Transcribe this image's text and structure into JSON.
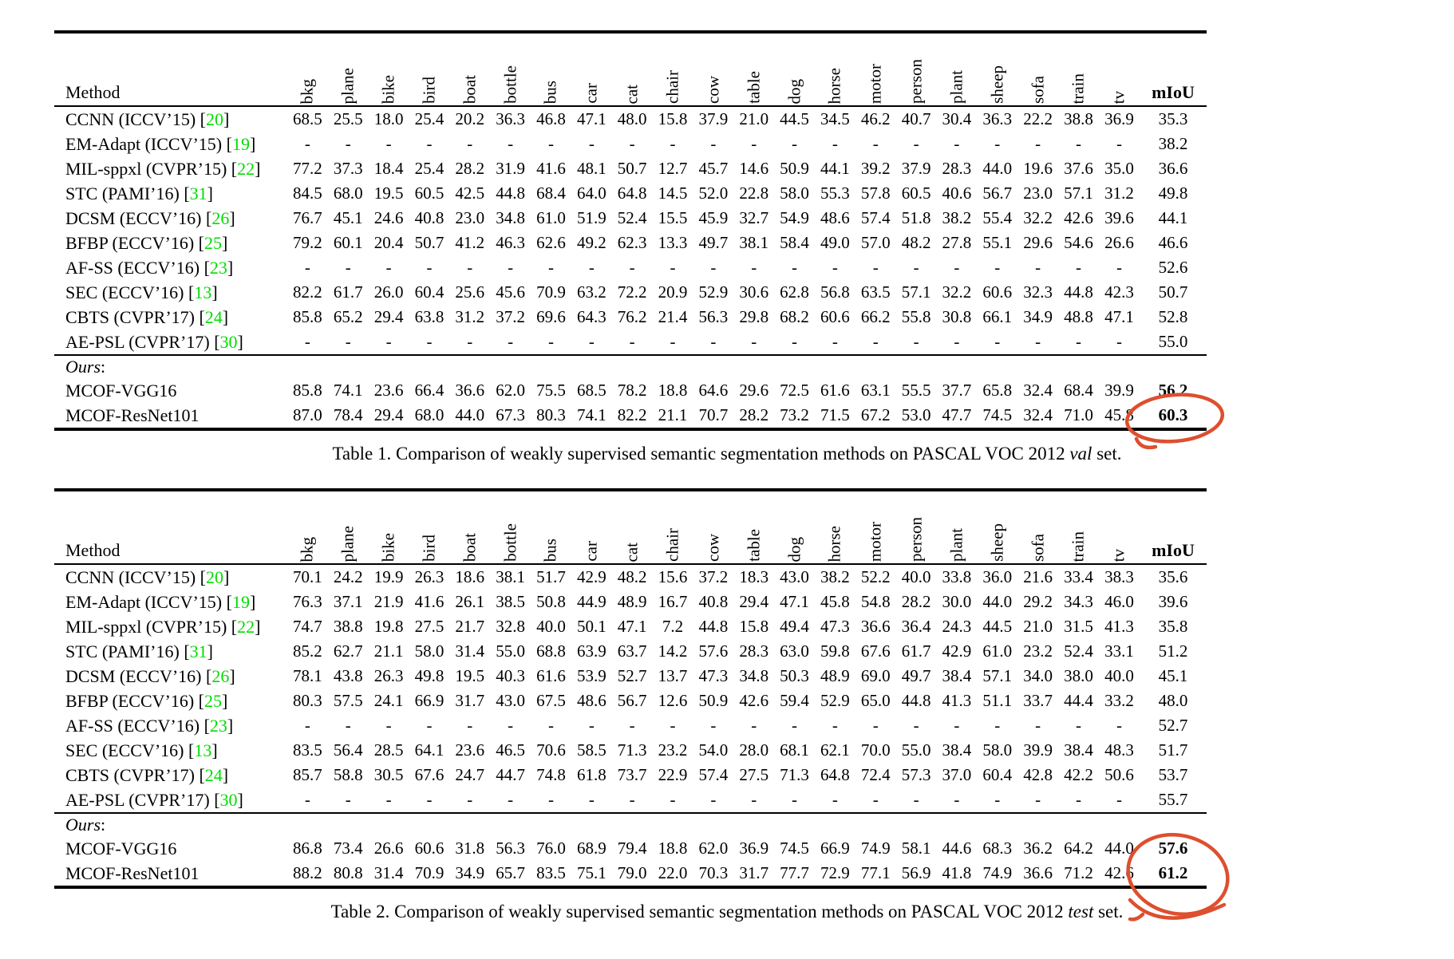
{
  "colors": {
    "reference_green": "#00dd00",
    "annotation_red": "#dd4f2e"
  },
  "header": {
    "method": "Method",
    "miou": "mIoU"
  },
  "class_columns": [
    "bkg",
    "plane",
    "bike",
    "bird",
    "boat",
    "bottle",
    "bus",
    "car",
    "cat",
    "chair",
    "cow",
    "table",
    "dog",
    "horse",
    "motor",
    "person",
    "plant",
    "sheep",
    "sofa",
    "train",
    "tv"
  ],
  "ours_label": "Ours",
  "tables": [
    {
      "caption": {
        "prefix": "Table 1. Comparison of weakly supervised semantic segmentation methods on PASCAL VOC 2012 ",
        "emphasis": "val",
        "suffix": " set."
      },
      "rows": [
        {
          "method": "CCNN (ICCV’15)",
          "ref": "20",
          "values": [
            "68.5",
            "25.5",
            "18.0",
            "25.4",
            "20.2",
            "36.3",
            "46.8",
            "47.1",
            "48.0",
            "15.8",
            "37.9",
            "21.0",
            "44.5",
            "34.5",
            "46.2",
            "40.7",
            "30.4",
            "36.3",
            "22.2",
            "38.8",
            "36.9"
          ],
          "miou": "35.3"
        },
        {
          "method": "EM-Adapt (ICCV’15)",
          "ref": "19",
          "values": [
            "-",
            "-",
            "-",
            "-",
            "-",
            "-",
            "-",
            "-",
            "-",
            "-",
            "-",
            "-",
            "-",
            "-",
            "-",
            "-",
            "-",
            "-",
            "-",
            "-",
            "-"
          ],
          "miou": "38.2"
        },
        {
          "method": "MIL-sppxl (CVPR’15)",
          "ref": "22",
          "values": [
            "77.2",
            "37.3",
            "18.4",
            "25.4",
            "28.2",
            "31.9",
            "41.6",
            "48.1",
            "50.7",
            "12.7",
            "45.7",
            "14.6",
            "50.9",
            "44.1",
            "39.2",
            "37.9",
            "28.3",
            "44.0",
            "19.6",
            "37.6",
            "35.0"
          ],
          "miou": "36.6"
        },
        {
          "method": "STC (PAMI’16)",
          "ref": "31",
          "values": [
            "84.5",
            "68.0",
            "19.5",
            "60.5",
            "42.5",
            "44.8",
            "68.4",
            "64.0",
            "64.8",
            "14.5",
            "52.0",
            "22.8",
            "58.0",
            "55.3",
            "57.8",
            "60.5",
            "40.6",
            "56.7",
            "23.0",
            "57.1",
            "31.2"
          ],
          "miou": "49.8"
        },
        {
          "method": "DCSM (ECCV’16)",
          "ref": "26",
          "values": [
            "76.7",
            "45.1",
            "24.6",
            "40.8",
            "23.0",
            "34.8",
            "61.0",
            "51.9",
            "52.4",
            "15.5",
            "45.9",
            "32.7",
            "54.9",
            "48.6",
            "57.4",
            "51.8",
            "38.2",
            "55.4",
            "32.2",
            "42.6",
            "39.6"
          ],
          "miou": "44.1"
        },
        {
          "method": "BFBP (ECCV’16)",
          "ref": "25",
          "values": [
            "79.2",
            "60.1",
            "20.4",
            "50.7",
            "41.2",
            "46.3",
            "62.6",
            "49.2",
            "62.3",
            "13.3",
            "49.7",
            "38.1",
            "58.4",
            "49.0",
            "57.0",
            "48.2",
            "27.8",
            "55.1",
            "29.6",
            "54.6",
            "26.6"
          ],
          "miou": "46.6"
        },
        {
          "method": "AF-SS (ECCV’16)",
          "ref": "23",
          "values": [
            "-",
            "-",
            "-",
            "-",
            "-",
            "-",
            "-",
            "-",
            "-",
            "-",
            "-",
            "-",
            "-",
            "-",
            "-",
            "-",
            "-",
            "-",
            "-",
            "-",
            "-"
          ],
          "miou": "52.6"
        },
        {
          "method": "SEC (ECCV’16)",
          "ref": "13",
          "values": [
            "82.2",
            "61.7",
            "26.0",
            "60.4",
            "25.6",
            "45.6",
            "70.9",
            "63.2",
            "72.2",
            "20.9",
            "52.9",
            "30.6",
            "62.8",
            "56.8",
            "63.5",
            "57.1",
            "32.2",
            "60.6",
            "32.3",
            "44.8",
            "42.3"
          ],
          "miou": "50.7"
        },
        {
          "method": "CBTS (CVPR’17)",
          "ref": "24",
          "values": [
            "85.8",
            "65.2",
            "29.4",
            "63.8",
            "31.2",
            "37.2",
            "69.6",
            "64.3",
            "76.2",
            "21.4",
            "56.3",
            "29.8",
            "68.2",
            "60.6",
            "66.2",
            "55.8",
            "30.8",
            "66.1",
            "34.9",
            "48.8",
            "47.1"
          ],
          "miou": "52.8"
        },
        {
          "method": "AE-PSL (CVPR’17)",
          "ref": "30",
          "values": [
            "-",
            "-",
            "-",
            "-",
            "-",
            "-",
            "-",
            "-",
            "-",
            "-",
            "-",
            "-",
            "-",
            "-",
            "-",
            "-",
            "-",
            "-",
            "-",
            "-",
            "-"
          ],
          "miou": "55.0"
        }
      ],
      "ours_rows": [
        {
          "method": "MCOF-VGG16",
          "ref": "",
          "values": [
            "85.8",
            "74.1",
            "23.6",
            "66.4",
            "36.6",
            "62.0",
            "75.5",
            "68.5",
            "78.2",
            "18.8",
            "64.6",
            "29.6",
            "72.5",
            "61.6",
            "63.1",
            "55.5",
            "37.7",
            "65.8",
            "32.4",
            "68.4",
            "39.9"
          ],
          "miou": "56.2"
        },
        {
          "method": "MCOF-ResNet101",
          "ref": "",
          "values": [
            "87.0",
            "78.4",
            "29.4",
            "68.0",
            "44.0",
            "67.3",
            "80.3",
            "74.1",
            "82.2",
            "21.1",
            "70.7",
            "28.2",
            "73.2",
            "71.5",
            "67.2",
            "53.0",
            "47.7",
            "74.5",
            "32.4",
            "71.0",
            "45.8"
          ],
          "miou": "60.3"
        }
      ]
    },
    {
      "caption": {
        "prefix": "Table 2. Comparison of weakly supervised semantic segmentation methods on PASCAL VOC 2012 ",
        "emphasis": "test",
        "suffix": " set."
      },
      "rows": [
        {
          "method": "CCNN (ICCV’15)",
          "ref": "20",
          "values": [
            "70.1",
            "24.2",
            "19.9",
            "26.3",
            "18.6",
            "38.1",
            "51.7",
            "42.9",
            "48.2",
            "15.6",
            "37.2",
            "18.3",
            "43.0",
            "38.2",
            "52.2",
            "40.0",
            "33.8",
            "36.0",
            "21.6",
            "33.4",
            "38.3"
          ],
          "miou": "35.6"
        },
        {
          "method": "EM-Adapt (ICCV’15)",
          "ref": "19",
          "values": [
            "76.3",
            "37.1",
            "21.9",
            "41.6",
            "26.1",
            "38.5",
            "50.8",
            "44.9",
            "48.9",
            "16.7",
            "40.8",
            "29.4",
            "47.1",
            "45.8",
            "54.8",
            "28.2",
            "30.0",
            "44.0",
            "29.2",
            "34.3",
            "46.0"
          ],
          "miou": "39.6"
        },
        {
          "method": "MIL-sppxl (CVPR’15)",
          "ref": "22",
          "values": [
            "74.7",
            "38.8",
            "19.8",
            "27.5",
            "21.7",
            "32.8",
            "40.0",
            "50.1",
            "47.1",
            "7.2",
            "44.8",
            "15.8",
            "49.4",
            "47.3",
            "36.6",
            "36.4",
            "24.3",
            "44.5",
            "21.0",
            "31.5",
            "41.3"
          ],
          "miou": "35.8"
        },
        {
          "method": "STC (PAMI’16)",
          "ref": "31",
          "values": [
            "85.2",
            "62.7",
            "21.1",
            "58.0",
            "31.4",
            "55.0",
            "68.8",
            "63.9",
            "63.7",
            "14.2",
            "57.6",
            "28.3",
            "63.0",
            "59.8",
            "67.6",
            "61.7",
            "42.9",
            "61.0",
            "23.2",
            "52.4",
            "33.1"
          ],
          "miou": "51.2"
        },
        {
          "method": "DCSM (ECCV’16)",
          "ref": "26",
          "values": [
            "78.1",
            "43.8",
            "26.3",
            "49.8",
            "19.5",
            "40.3",
            "61.6",
            "53.9",
            "52.7",
            "13.7",
            "47.3",
            "34.8",
            "50.3",
            "48.9",
            "69.0",
            "49.7",
            "38.4",
            "57.1",
            "34.0",
            "38.0",
            "40.0"
          ],
          "miou": "45.1"
        },
        {
          "method": "BFBP (ECCV’16)",
          "ref": "25",
          "values": [
            "80.3",
            "57.5",
            "24.1",
            "66.9",
            "31.7",
            "43.0",
            "67.5",
            "48.6",
            "56.7",
            "12.6",
            "50.9",
            "42.6",
            "59.4",
            "52.9",
            "65.0",
            "44.8",
            "41.3",
            "51.1",
            "33.7",
            "44.4",
            "33.2"
          ],
          "miou": "48.0"
        },
        {
          "method": "AF-SS (ECCV’16)",
          "ref": "23",
          "values": [
            "-",
            "-",
            "-",
            "-",
            "-",
            "-",
            "-",
            "-",
            "-",
            "-",
            "-",
            "-",
            "-",
            "-",
            "-",
            "-",
            "-",
            "-",
            "-",
            "-",
            "-"
          ],
          "miou": "52.7"
        },
        {
          "method": "SEC (ECCV’16)",
          "ref": "13",
          "values": [
            "83.5",
            "56.4",
            "28.5",
            "64.1",
            "23.6",
            "46.5",
            "70.6",
            "58.5",
            "71.3",
            "23.2",
            "54.0",
            "28.0",
            "68.1",
            "62.1",
            "70.0",
            "55.0",
            "38.4",
            "58.0",
            "39.9",
            "38.4",
            "48.3"
          ],
          "miou": "51.7"
        },
        {
          "method": "CBTS (CVPR’17)",
          "ref": "24",
          "values": [
            "85.7",
            "58.8",
            "30.5",
            "67.6",
            "24.7",
            "44.7",
            "74.8",
            "61.8",
            "73.7",
            "22.9",
            "57.4",
            "27.5",
            "71.3",
            "64.8",
            "72.4",
            "57.3",
            "37.0",
            "60.4",
            "42.8",
            "42.2",
            "50.6"
          ],
          "miou": "53.7"
        },
        {
          "method": "AE-PSL (CVPR’17)",
          "ref": "30",
          "values": [
            "-",
            "-",
            "-",
            "-",
            "-",
            "-",
            "-",
            "-",
            "-",
            "-",
            "-",
            "-",
            "-",
            "-",
            "-",
            "-",
            "-",
            "-",
            "-",
            "-",
            "-"
          ],
          "miou": "55.7"
        }
      ],
      "ours_rows": [
        {
          "method": "MCOF-VGG16",
          "ref": "",
          "values": [
            "86.8",
            "73.4",
            "26.6",
            "60.6",
            "31.8",
            "56.3",
            "76.0",
            "68.9",
            "79.4",
            "18.8",
            "62.0",
            "36.9",
            "74.5",
            "66.9",
            "74.9",
            "58.1",
            "44.6",
            "68.3",
            "36.2",
            "64.2",
            "44.0"
          ],
          "miou": "57.6"
        },
        {
          "method": "MCOF-ResNet101",
          "ref": "",
          "values": [
            "88.2",
            "80.8",
            "31.4",
            "70.9",
            "34.9",
            "65.7",
            "83.5",
            "75.1",
            "79.0",
            "22.0",
            "70.3",
            "31.7",
            "77.7",
            "72.9",
            "77.1",
            "56.9",
            "41.8",
            "74.9",
            "36.6",
            "71.2",
            "42.6"
          ],
          "miou": "61.2"
        }
      ]
    }
  ],
  "annotations": [
    {
      "name": "red-circle-val-miou",
      "circled_value": "60.3"
    },
    {
      "name": "red-circle-test-miou",
      "circled_value": "61.2"
    }
  ]
}
